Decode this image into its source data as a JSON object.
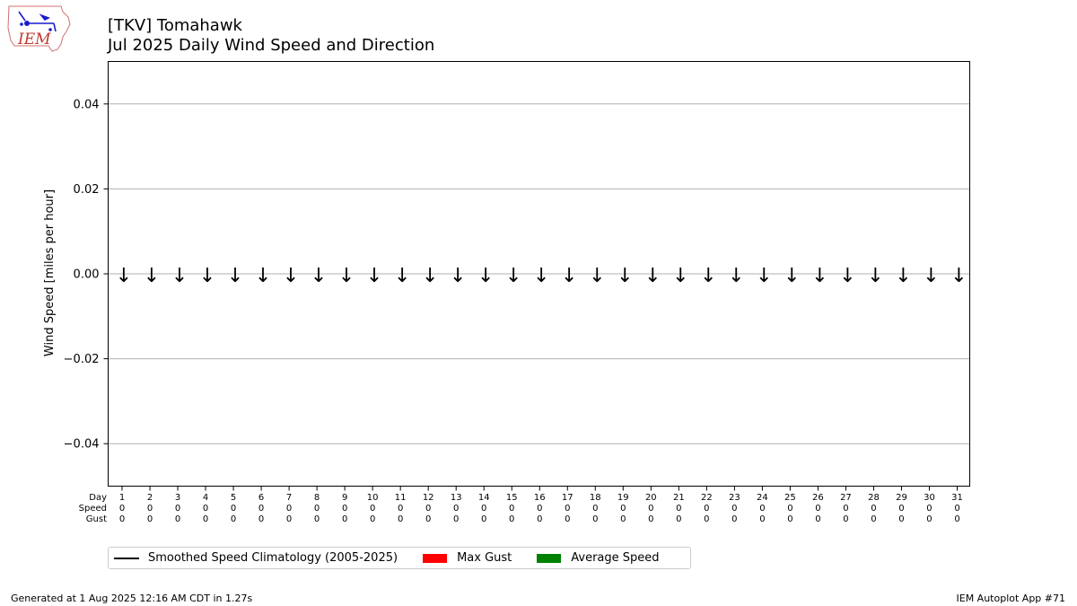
{
  "logo": {
    "text": "IEM"
  },
  "header": {
    "title_line1": "[TKV] Tomahawk",
    "title_line2": "Jul 2025 Daily Wind Speed and Direction"
  },
  "chart_data": {
    "type": "bar",
    "ylabel": "Wind Speed [miles per hour]",
    "ylim": [
      -0.05,
      0.05
    ],
    "yticks": [
      -0.04,
      -0.02,
      0.0,
      0.02,
      0.04
    ],
    "ytick_labels": [
      "−0.04",
      "−0.02",
      "0.00",
      "0.02",
      "0.04"
    ],
    "grid": true,
    "row_labels": [
      "Day",
      "Speed",
      "Gust"
    ],
    "days": [
      1,
      2,
      3,
      4,
      5,
      6,
      7,
      8,
      9,
      10,
      11,
      12,
      13,
      14,
      15,
      16,
      17,
      18,
      19,
      20,
      21,
      22,
      23,
      24,
      25,
      26,
      27,
      28,
      29,
      30,
      31
    ],
    "speed": [
      0,
      0,
      0,
      0,
      0,
      0,
      0,
      0,
      0,
      0,
      0,
      0,
      0,
      0,
      0,
      0,
      0,
      0,
      0,
      0,
      0,
      0,
      0,
      0,
      0,
      0,
      0,
      0,
      0,
      0,
      0
    ],
    "gust": [
      0,
      0,
      0,
      0,
      0,
      0,
      0,
      0,
      0,
      0,
      0,
      0,
      0,
      0,
      0,
      0,
      0,
      0,
      0,
      0,
      0,
      0,
      0,
      0,
      0,
      0,
      0,
      0,
      0,
      0,
      0
    ],
    "direction_arrow": "↓",
    "series": [
      {
        "name": "Smoothed Speed Climatology (2005-2025)",
        "color": "#000000"
      },
      {
        "name": "Max Gust",
        "color": "#ff0000"
      },
      {
        "name": "Average Speed",
        "color": "#008000"
      }
    ]
  },
  "legend": {
    "climatology": "Smoothed Speed Climatology (2005-2025)",
    "max_gust": "Max Gust",
    "average_speed": "Average Speed"
  },
  "footer": {
    "generated": "Generated at 1 Aug 2025 12:16 AM CDT in 1.27s",
    "app": "IEM Autoplot App #71"
  }
}
